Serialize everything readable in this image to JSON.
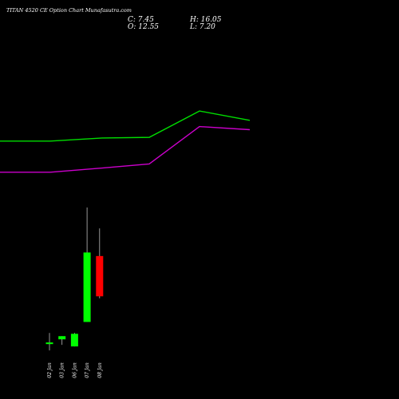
{
  "header": {
    "title": "TITAN 4520 CE Option Chart Munafasutra.com",
    "close": "C: 7.45",
    "open": "O: 12.55",
    "high": "H: 16.05",
    "low": "L: 7.20"
  },
  "chart_data": {
    "type": "candlestick",
    "categories": [
      "02 Jan",
      "03 Jan",
      "06 Jan",
      "07 Jan",
      "08 Jan"
    ],
    "candles": [
      {
        "date": "02 Jan",
        "open": 1.4,
        "high": 2.8,
        "low": 0.6,
        "close": 1.6
      },
      {
        "date": "03 Jan",
        "open": 2.0,
        "high": 2.4,
        "low": 1.3,
        "close": 2.4
      },
      {
        "date": "06 Jan",
        "open": 1.1,
        "high": 2.8,
        "low": 1.1,
        "close": 2.7
      },
      {
        "date": "07 Jan",
        "open": 4.2,
        "high": 18.7,
        "low": 4.2,
        "close": 13.0
      },
      {
        "date": "08 Jan",
        "open": 12.55,
        "high": 16.05,
        "low": 7.2,
        "close": 7.45
      }
    ],
    "overlays": [
      {
        "color": "#00dd00",
        "values": [
          0.68,
          0.68,
          0.665,
          0.662,
          0.535,
          0.58
        ]
      },
      {
        "color": "#cc00cc",
        "values": [
          0.83,
          0.83,
          0.81,
          0.79,
          0.61,
          0.625
        ]
      }
    ],
    "up_color": "#00ff00",
    "down_color": "#ff0000",
    "grid": false
  }
}
